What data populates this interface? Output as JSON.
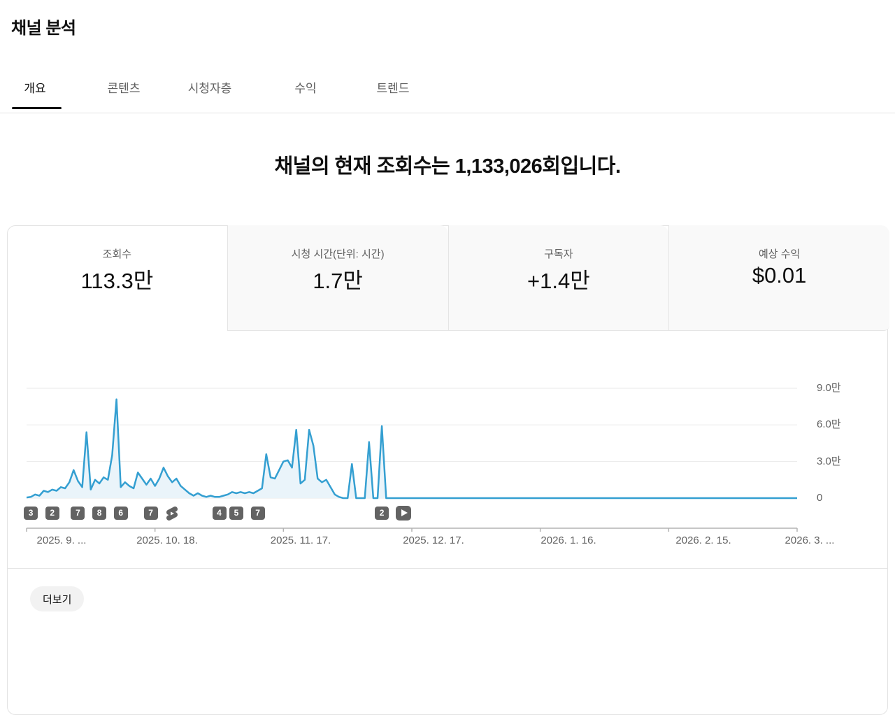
{
  "page_title": "채널 분석",
  "tabs": [
    {
      "label": "개요",
      "active": true
    },
    {
      "label": "콘텐츠",
      "active": false
    },
    {
      "label": "시청자층",
      "active": false
    },
    {
      "label": "수익",
      "active": false
    },
    {
      "label": "트렌드",
      "active": false
    }
  ],
  "headline": "채널의 현재 조회수는 1,133,026회입니다.",
  "metrics": [
    {
      "label": "조회수",
      "value": "113.3만",
      "selected": true
    },
    {
      "label": "시청 시간(단위: 시간)",
      "value": "1.7만",
      "selected": false
    },
    {
      "label": "구독자",
      "value": "+1.4만",
      "selected": false
    },
    {
      "label": "예상 수익",
      "value": "$0.01",
      "selected": false
    }
  ],
  "see_more_label": "더보기",
  "chart_data": {
    "type": "area",
    "series_name": "일일 조회수",
    "legend_position": "none",
    "grid": true,
    "y_axis": {
      "ticks": [
        {
          "label": "9.0만",
          "value_k": 90
        },
        {
          "label": "6.0만",
          "value_k": 60
        },
        {
          "label": "3.0만",
          "value_k": 30
        },
        {
          "label": "0",
          "value_k": 0
        }
      ],
      "range_k": [
        0,
        97
      ]
    },
    "x_axis": {
      "tick_labels": [
        "2025. 9. ...",
        "2025. 10. 18.",
        "2025. 11. 17.",
        "2025. 12. 17.",
        "2026. 1. 16.",
        "2026. 2. 15.",
        "2026. 3. ..."
      ],
      "days_total": 181
    },
    "daily_views_thousands": [
      0.5,
      1,
      3,
      2,
      6,
      5,
      7,
      6,
      9,
      8,
      13,
      23,
      14,
      9,
      54,
      7,
      15,
      12,
      17,
      15,
      35,
      81,
      9,
      13,
      10,
      8,
      21,
      16,
      11,
      16,
      10,
      16,
      25,
      18,
      13,
      16,
      10,
      7,
      4,
      2,
      4,
      2,
      1,
      2,
      1,
      1,
      2,
      3,
      5,
      4,
      5,
      4,
      5,
      4,
      6,
      8,
      36,
      17,
      16,
      23,
      30,
      31,
      25,
      56,
      12,
      15,
      56,
      43,
      16,
      13,
      15,
      9,
      3,
      1,
      0,
      0,
      28,
      0,
      0,
      0,
      46,
      0,
      0,
      59,
      0,
      0
    ],
    "zero_after_day": 85,
    "upload_markers": [
      {
        "day": 1,
        "label": "3",
        "type": "count"
      },
      {
        "day": 6,
        "label": "2",
        "type": "count"
      },
      {
        "day": 12,
        "label": "7",
        "type": "count"
      },
      {
        "day": 17,
        "label": "8",
        "type": "count"
      },
      {
        "day": 22,
        "label": "6",
        "type": "count"
      },
      {
        "day": 29,
        "label": "7",
        "type": "count"
      },
      {
        "day": 34,
        "label": "",
        "type": "shorts-icon"
      },
      {
        "day": 45,
        "label": "4",
        "type": "count"
      },
      {
        "day": 49,
        "label": "5",
        "type": "count"
      },
      {
        "day": 54,
        "label": "7",
        "type": "count"
      },
      {
        "day": 83,
        "label": "2",
        "type": "count"
      },
      {
        "day": 88,
        "label": "",
        "type": "play-icon"
      }
    ],
    "colors": {
      "line": "#349fd1",
      "fill": "#eaf4fa",
      "grid": "#e8e8e8",
      "axis": "#b3b3b3",
      "marker_bg": "#636363"
    }
  }
}
